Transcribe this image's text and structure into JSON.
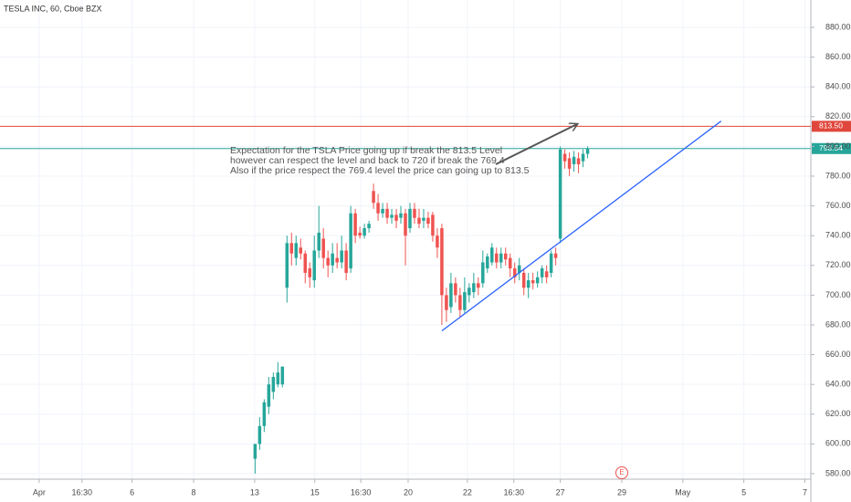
{
  "chart_data": {
    "type": "candlestick",
    "title": "TESLA INC, 60, Cboe BZX",
    "xlim": [
      0,
      178
    ],
    "ylim": [
      576.3,
      898.4
    ],
    "xticks": [
      {
        "value": 8.6,
        "label": "Apr"
      },
      {
        "value": 18,
        "label": "16:30"
      },
      {
        "value": 29,
        "label": "6"
      },
      {
        "value": 42.5,
        "label": "8"
      },
      {
        "value": 55.9,
        "label": "13"
      },
      {
        "value": 69.1,
        "label": "15"
      },
      {
        "value": 79.2,
        "label": "16:30"
      },
      {
        "value": 89.6,
        "label": "20"
      },
      {
        "value": 102.6,
        "label": "22"
      },
      {
        "value": 112.8,
        "label": "16:30"
      },
      {
        "value": 123,
        "label": "27"
      },
      {
        "value": 136.5,
        "label": "29"
      },
      {
        "value": 149.9,
        "label": "May"
      },
      {
        "value": 163.3,
        "label": "5"
      },
      {
        "value": 176.7,
        "label": "7"
      }
    ],
    "yticks": [
      {
        "value": 580,
        "label": "580.00"
      },
      {
        "value": 600,
        "label": "600.00"
      },
      {
        "value": 620,
        "label": "620.00"
      },
      {
        "value": 640,
        "label": "640.00"
      },
      {
        "value": 660,
        "label": "660.00"
      },
      {
        "value": 680,
        "label": "680.00"
      },
      {
        "value": 700,
        "label": "700.00"
      },
      {
        "value": 720,
        "label": "720.00"
      },
      {
        "value": 740,
        "label": "740.00"
      },
      {
        "value": 760,
        "label": "760.00"
      },
      {
        "value": 780,
        "label": "780.00"
      },
      {
        "value": 800,
        "label": "800.00"
      },
      {
        "value": 820,
        "label": "820.00"
      },
      {
        "value": 840,
        "label": "840.00"
      },
      {
        "value": 860,
        "label": "860.00"
      },
      {
        "value": 880,
        "label": "880.00"
      }
    ],
    "grid": true,
    "up_color": "#26a69a",
    "down_color": "#ef5350",
    "x": [
      56,
      57,
      58,
      59,
      60,
      61,
      62,
      63,
      64,
      65,
      66,
      67,
      68,
      69,
      70,
      71,
      72,
      73,
      74,
      75,
      76,
      77,
      78,
      79,
      80,
      81,
      82,
      83,
      84,
      85,
      86,
      87,
      88,
      89,
      90,
      91,
      92,
      93,
      94,
      95,
      96,
      97,
      98,
      99,
      100,
      101,
      102,
      103,
      104,
      105,
      106,
      107,
      108,
      109,
      110,
      111,
      112,
      113,
      114,
      115,
      116,
      117,
      118,
      119,
      120,
      121,
      122,
      123,
      124,
      125,
      126,
      127,
      128,
      129
    ],
    "open": [
      590,
      600,
      612,
      625,
      635,
      640,
      640,
      705,
      735,
      725,
      732,
      728,
      718,
      710,
      730,
      738,
      725,
      720,
      725,
      722,
      730,
      718,
      755,
      742,
      740,
      745,
      770,
      762,
      755,
      758,
      752,
      754,
      752,
      755,
      745,
      758,
      752,
      750,
      752,
      754,
      740,
      745,
      700,
      692,
      708,
      700,
      690,
      700,
      702,
      708,
      708,
      718,
      722,
      728,
      722,
      728,
      725,
      718,
      715,
      715,
      705,
      710,
      708,
      712,
      716,
      715,
      728,
      738,
      795,
      792,
      788,
      792,
      790,
      795
    ],
    "high": [
      600,
      618,
      630,
      645,
      648,
      655,
      652,
      740,
      742,
      740,
      738,
      730,
      722,
      740,
      760,
      745,
      730,
      735,
      735,
      740,
      735,
      760,
      758,
      746,
      748,
      750,
      775,
      768,
      762,
      762,
      758,
      758,
      760,
      758,
      762,
      762,
      758,
      758,
      756,
      756,
      745,
      748,
      705,
      715,
      712,
      705,
      712,
      708,
      715,
      712,
      730,
      728,
      735,
      732,
      732,
      732,
      728,
      722,
      725,
      718,
      715,
      715,
      716,
      720,
      720,
      730,
      732,
      800,
      798,
      796,
      797,
      796,
      798,
      800
    ],
    "low": [
      580,
      596,
      608,
      620,
      630,
      638,
      638,
      695,
      720,
      720,
      724,
      708,
      705,
      705,
      725,
      718,
      712,
      715,
      718,
      718,
      710,
      715,
      735,
      738,
      738,
      742,
      758,
      750,
      752,
      748,
      748,
      745,
      748,
      720,
      742,
      748,
      745,
      745,
      745,
      736,
      725,
      680,
      682,
      688,
      695,
      685,
      688,
      695,
      698,
      700,
      705,
      715,
      720,
      718,
      718,
      720,
      712,
      708,
      710,
      700,
      698,
      704,
      705,
      708,
      708,
      712,
      720,
      735,
      785,
      780,
      783,
      782,
      786,
      792
    ],
    "close": [
      600,
      612,
      628,
      640,
      645,
      648,
      652,
      735,
      728,
      735,
      728,
      715,
      712,
      730,
      742,
      725,
      720,
      728,
      722,
      730,
      715,
      755,
      740,
      740,
      745,
      748,
      762,
      755,
      758,
      752,
      754,
      750,
      755,
      740,
      758,
      752,
      748,
      752,
      748,
      740,
      732,
      700,
      690,
      708,
      700,
      690,
      702,
      705,
      708,
      705,
      722,
      726,
      732,
      722,
      728,
      724,
      718,
      712,
      720,
      705,
      710,
      708,
      712,
      718,
      712,
      728,
      725,
      798,
      790,
      785,
      793,
      788,
      795,
      798.54
    ],
    "levels": [
      {
        "value": 813.5,
        "label": "813.50",
        "color": "#e0473c"
      },
      {
        "value": 798.54,
        "label": "798.54",
        "color": "#26a69a"
      }
    ],
    "trendline": {
      "x": [
        97,
        158.3
      ],
      "y": [
        676,
        817
      ],
      "color": "#2962ff"
    },
    "annotation": [
      "Expectation for the TSLA Price going up if break the 813.5 Level",
      "however can respect the level and back to 720 if break the 769.4",
      "Also if the price respect the 769.4 level the price can going up to 813.5"
    ],
    "event_marker": "E"
  }
}
